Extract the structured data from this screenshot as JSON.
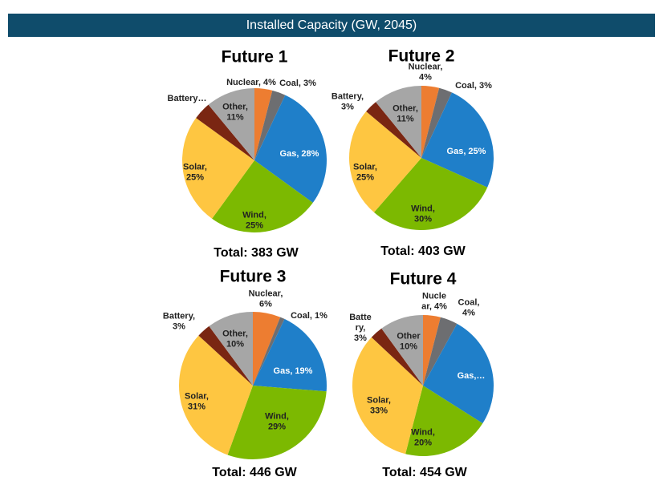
{
  "header": {
    "title": "Installed Capacity (GW, 2045)"
  },
  "chart_data": [
    {
      "type": "pie",
      "title": "Future 1",
      "total": "Total:  383 GW",
      "values": [
        4,
        3,
        28,
        25,
        25,
        4,
        11
      ],
      "value_labels": [
        "Nuclear, 4%",
        "Coal, 3%",
        "Gas, 28%",
        "Wind,\n25%",
        "Solar,\n25%",
        "Battery…",
        "Other,\n11%"
      ],
      "colors": [
        "#ed7d31",
        "#6d6e71",
        "#1f7fc9",
        "#7cb901",
        "#fec641",
        "#7a2612",
        "#a6a6a6"
      ]
    },
    {
      "type": "pie",
      "title": "Future 2",
      "total": "Total:  403 GW",
      "values": [
        4,
        3,
        25,
        30,
        25,
        3,
        11
      ],
      "value_labels": [
        "Nuclear,\n4%",
        "Coal, 3%",
        "Gas, 25%",
        "Wind,\n30%",
        "Solar,\n25%",
        "Battery,\n3%",
        "Other,\n11%"
      ],
      "colors": [
        "#ed7d31",
        "#6d6e71",
        "#1f7fc9",
        "#7cb901",
        "#fec641",
        "#7a2612",
        "#a6a6a6"
      ]
    },
    {
      "type": "pie",
      "title": "Future 3",
      "total": "Total: 446 GW",
      "values": [
        6,
        1,
        19,
        29,
        31,
        3,
        10
      ],
      "value_labels": [
        "Nuclear,\n6%",
        "Coal, 1%",
        "Gas, 19%",
        "Wind,\n29%",
        "Solar,\n31%",
        "Battery,\n3%",
        "Other,\n10%"
      ],
      "colors": [
        "#ed7d31",
        "#6d6e71",
        "#1f7fc9",
        "#7cb901",
        "#fec641",
        "#7a2612",
        "#a6a6a6"
      ]
    },
    {
      "type": "pie",
      "title": "Future 4",
      "total": "Total: 454 GW",
      "values": [
        4,
        4,
        26,
        20,
        33,
        3,
        10
      ],
      "value_labels": [
        "Nucle\nar, 4%",
        "Coal,\n4%",
        "Gas,…",
        "Wind,\n20%",
        "Solar,\n33%",
        "Batte\nry,\n3%",
        "Other\n10%"
      ],
      "colors": [
        "#ed7d31",
        "#6d6e71",
        "#1f7fc9",
        "#7cb901",
        "#fec641",
        "#7a2612",
        "#a6a6a6"
      ]
    }
  ]
}
